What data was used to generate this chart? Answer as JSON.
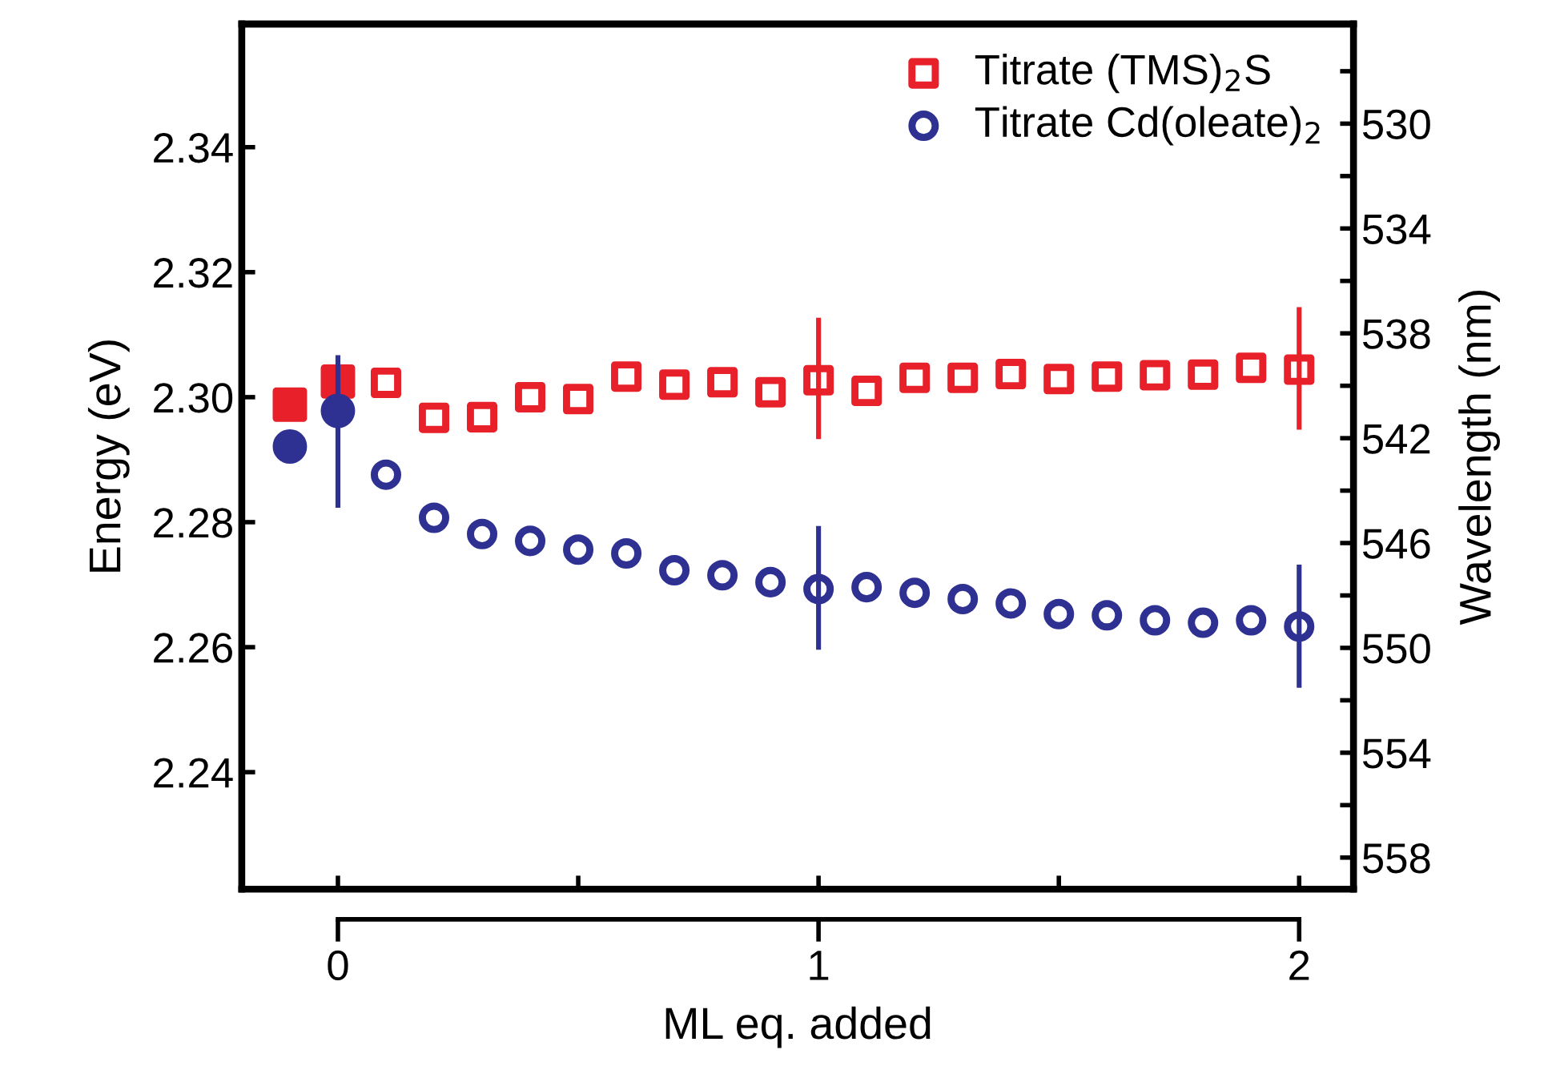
{
  "chart_data": {
    "type": "scatter",
    "xlabel": "ML eq. added",
    "ylabel": "Energy (eV)",
    "y2label": "Wavelength (nm)",
    "xlim": [
      -0.2,
      2.113
    ],
    "xticks": [
      0,
      {
        "value": 0.5,
        "label": null
      },
      1,
      {
        "value": 1.5,
        "label": null
      },
      2
    ],
    "ylim": [
      2.2213,
      2.3597
    ],
    "yticks": [
      2.24,
      2.26,
      2.28,
      {
        "value": 2.3,
        "label": "2.30"
      },
      2.32,
      2.34
    ],
    "y2lim": [
      559.2,
      526.2
    ],
    "y2ticks": [
      {
        "value": 528,
        "label": null
      },
      530,
      {
        "value": 532,
        "label": null
      },
      534,
      {
        "value": 536,
        "label": null
      },
      538,
      {
        "value": 540,
        "label": null
      },
      542,
      {
        "value": 544,
        "label": null
      },
      546,
      {
        "value": 548,
        "label": null
      },
      550,
      {
        "value": 552,
        "label": null
      },
      554,
      {
        "value": 556,
        "label": null
      },
      558
    ],
    "legend": "top right",
    "grid": false,
    "series": [
      {
        "name": "Titrate (TMS)$_{2}$S",
        "color": "#e8202a",
        "marker": "square",
        "x": [
          0.1,
          0.2,
          0.3,
          0.4,
          0.5,
          0.6,
          0.7,
          0.8,
          0.9,
          1.0,
          1.1,
          1.2,
          1.3,
          1.4,
          1.5,
          1.6,
          1.7,
          1.8,
          1.9,
          2.0
        ],
        "values": [
          2.3023,
          2.2967,
          2.2968,
          2.3,
          2.2997,
          2.3033,
          2.302,
          2.3024,
          2.3008,
          2.3027,
          2.301,
          2.3031,
          2.3031,
          2.3037,
          2.3029,
          2.3033,
          2.3035,
          2.3036,
          2.3047,
          2.3044
        ],
        "errors": [
          null,
          null,
          null,
          null,
          null,
          null,
          null,
          null,
          null,
          [
            2.2933,
            2.3127
          ],
          null,
          null,
          null,
          null,
          null,
          null,
          null,
          null,
          null,
          [
            2.2948,
            2.3144
          ]
        ]
      },
      {
        "name": "Titrate Cd(oleate)$_{2}$",
        "color": "#2e3192",
        "marker": "circle",
        "x": [
          0.1,
          0.2,
          0.3,
          0.4,
          0.5,
          0.6,
          0.7,
          0.8,
          0.9,
          1.0,
          1.1,
          1.2,
          1.3,
          1.4,
          1.5,
          1.6,
          1.7,
          1.8,
          1.9,
          2.0
        ],
        "values": [
          2.2876,
          2.2807,
          2.2781,
          2.277,
          2.2756,
          2.275,
          2.2723,
          2.2715,
          2.2704,
          2.2693,
          2.2696,
          2.2687,
          2.2677,
          2.267,
          2.2653,
          2.2651,
          2.2643,
          2.2639,
          2.2643,
          2.2633
        ],
        "errors": [
          null,
          null,
          null,
          null,
          null,
          null,
          null,
          null,
          null,
          [
            2.2596,
            2.2794
          ],
          null,
          null,
          null,
          null,
          null,
          null,
          null,
          null,
          null,
          [
            2.2535,
            2.2732
          ]
        ]
      },
      {
        "color": "#e8202a",
        "marker": "square",
        "x": [
          -0.1,
          0
        ],
        "values": [
          2.2988,
          2.3025
        ]
      },
      {
        "color": "#2e3192",
        "marker": "circle",
        "x": [
          -0.1,
          0
        ],
        "values": [
          2.2921,
          2.2978
        ],
        "errors": [
          null,
          [
            2.2823,
            2.3067
          ]
        ]
      }
    ]
  }
}
